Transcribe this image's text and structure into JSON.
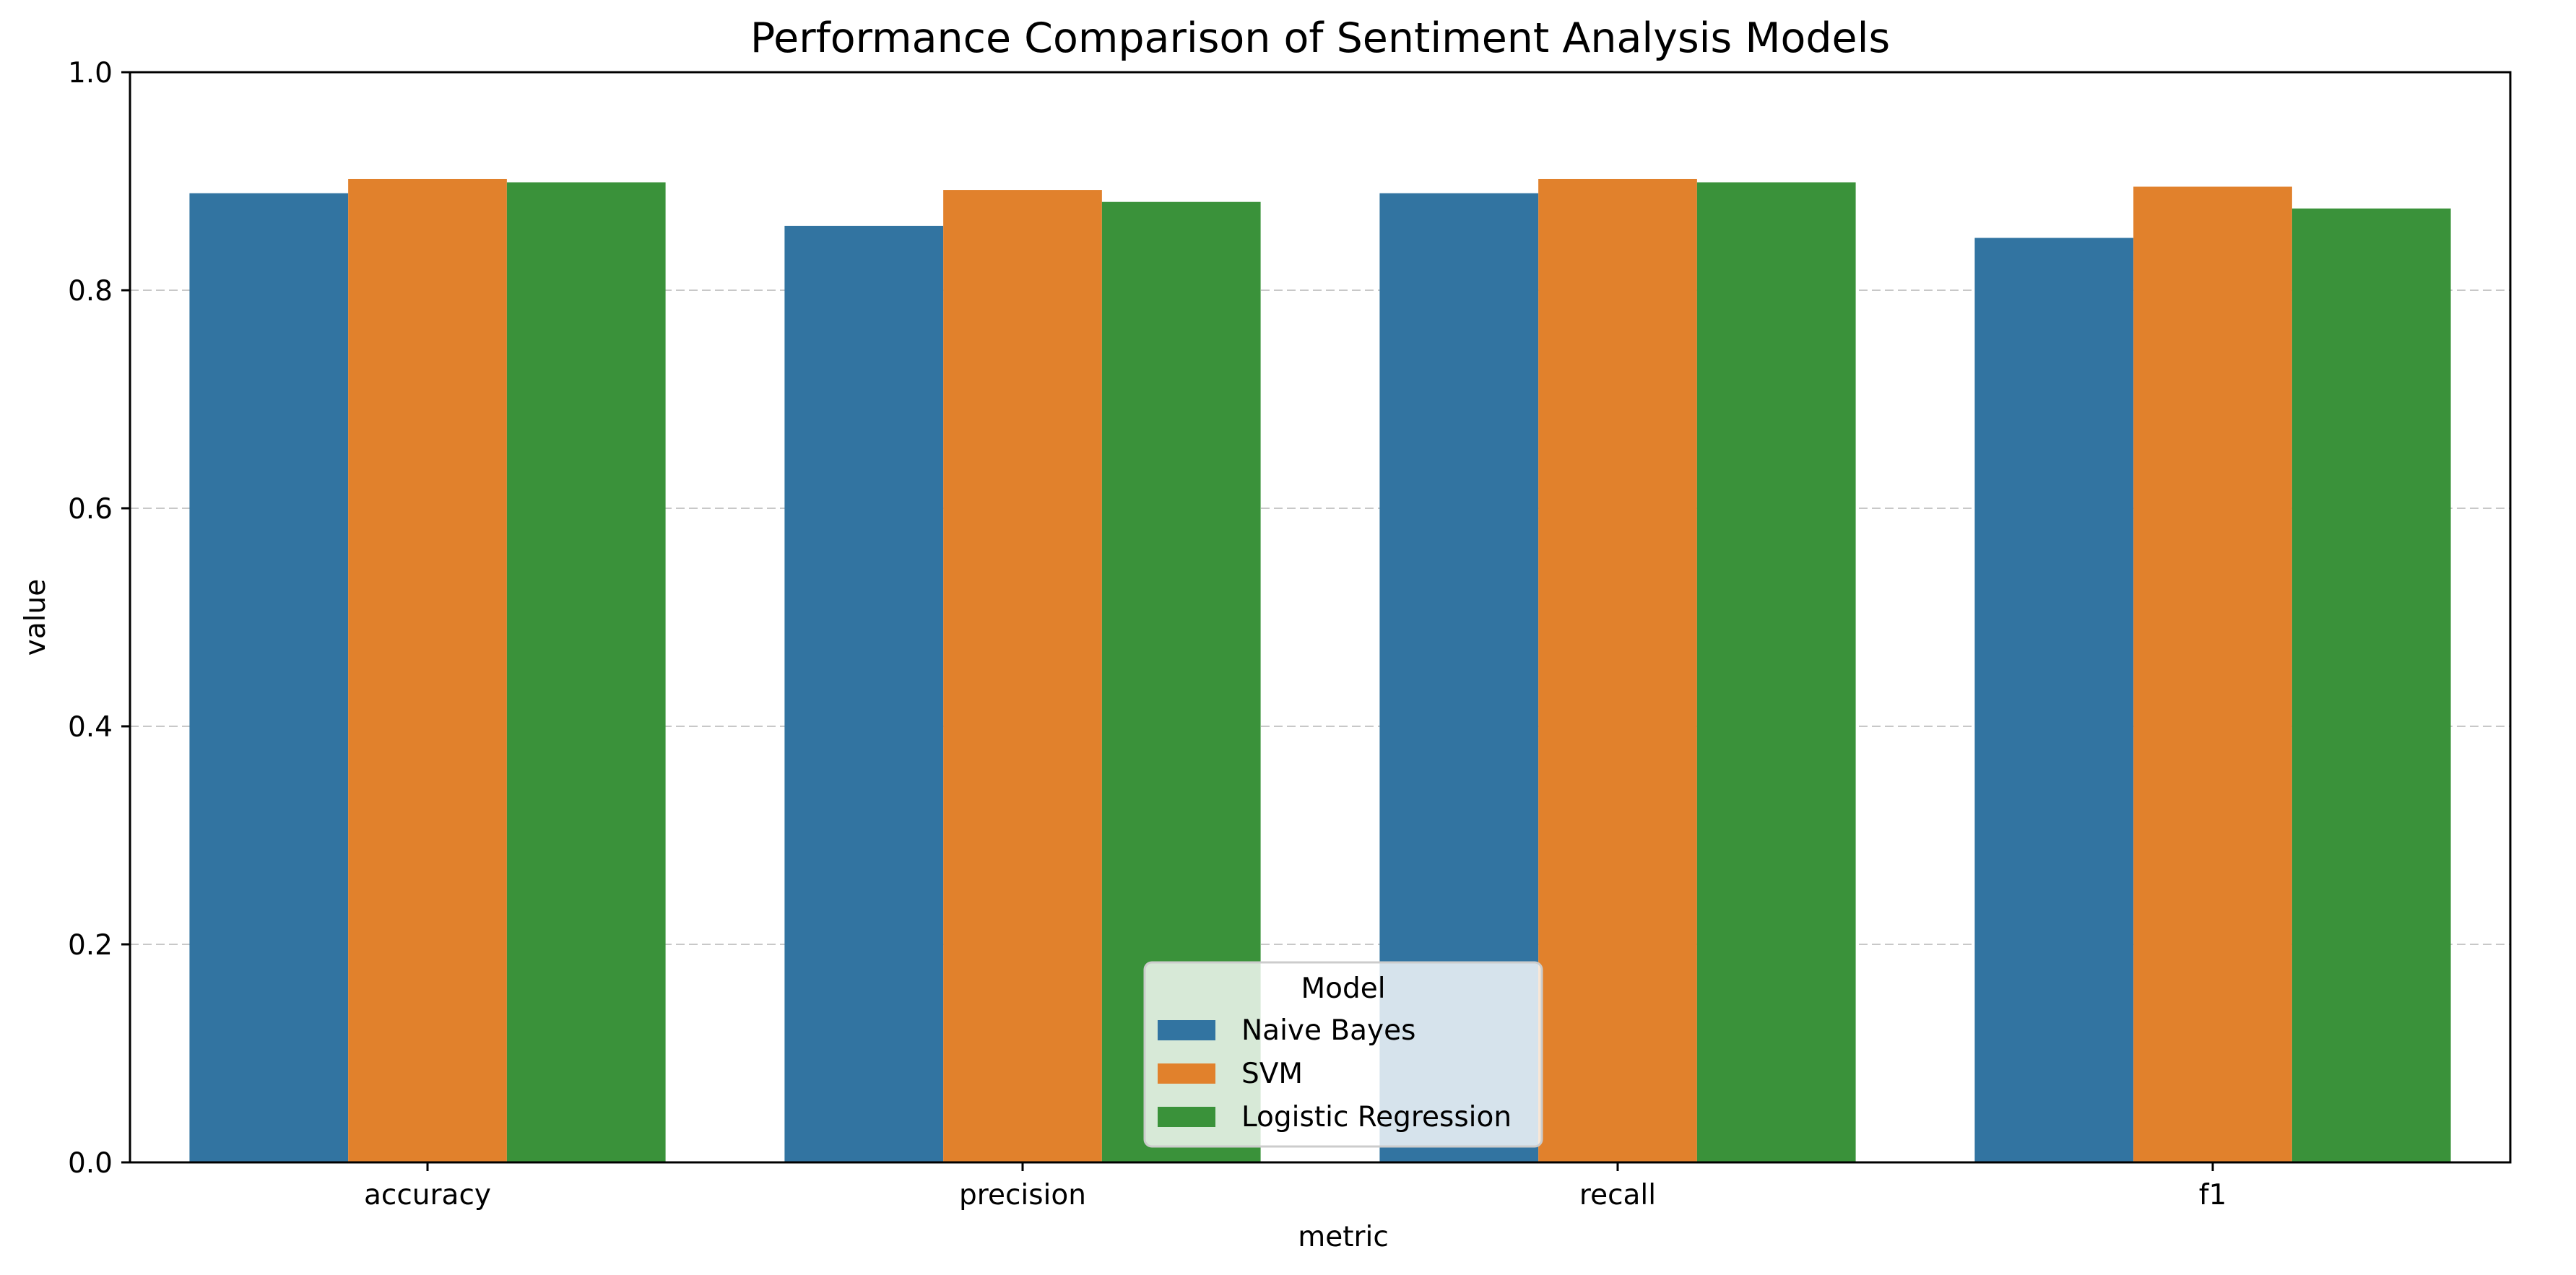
{
  "chart_data": {
    "type": "bar",
    "title": "Performance Comparison of Sentiment Analysis Models",
    "xlabel": "metric",
    "ylabel": "value",
    "categories": [
      "accuracy",
      "precision",
      "recall",
      "f1"
    ],
    "series": [
      {
        "name": "Naive Bayes",
        "values": [
          0.889,
          0.859,
          0.889,
          0.848
        ],
        "color": "#3274a1"
      },
      {
        "name": "SVM",
        "values": [
          0.902,
          0.892,
          0.902,
          0.895
        ],
        "color": "#e1812c"
      },
      {
        "name": "Logistic Regression",
        "values": [
          0.899,
          0.881,
          0.899,
          0.875
        ],
        "color": "#3a923a"
      }
    ],
    "ylim": [
      0.0,
      1.0
    ],
    "yticks": [
      "0.0",
      "0.2",
      "0.4",
      "0.6",
      "0.8",
      "1.0"
    ],
    "ytick_values": [
      0.0,
      0.2,
      0.4,
      0.6,
      0.8,
      1.0
    ],
    "grid": "y-dashed",
    "legend": {
      "title": "Model",
      "placement": "lower-center"
    }
  }
}
